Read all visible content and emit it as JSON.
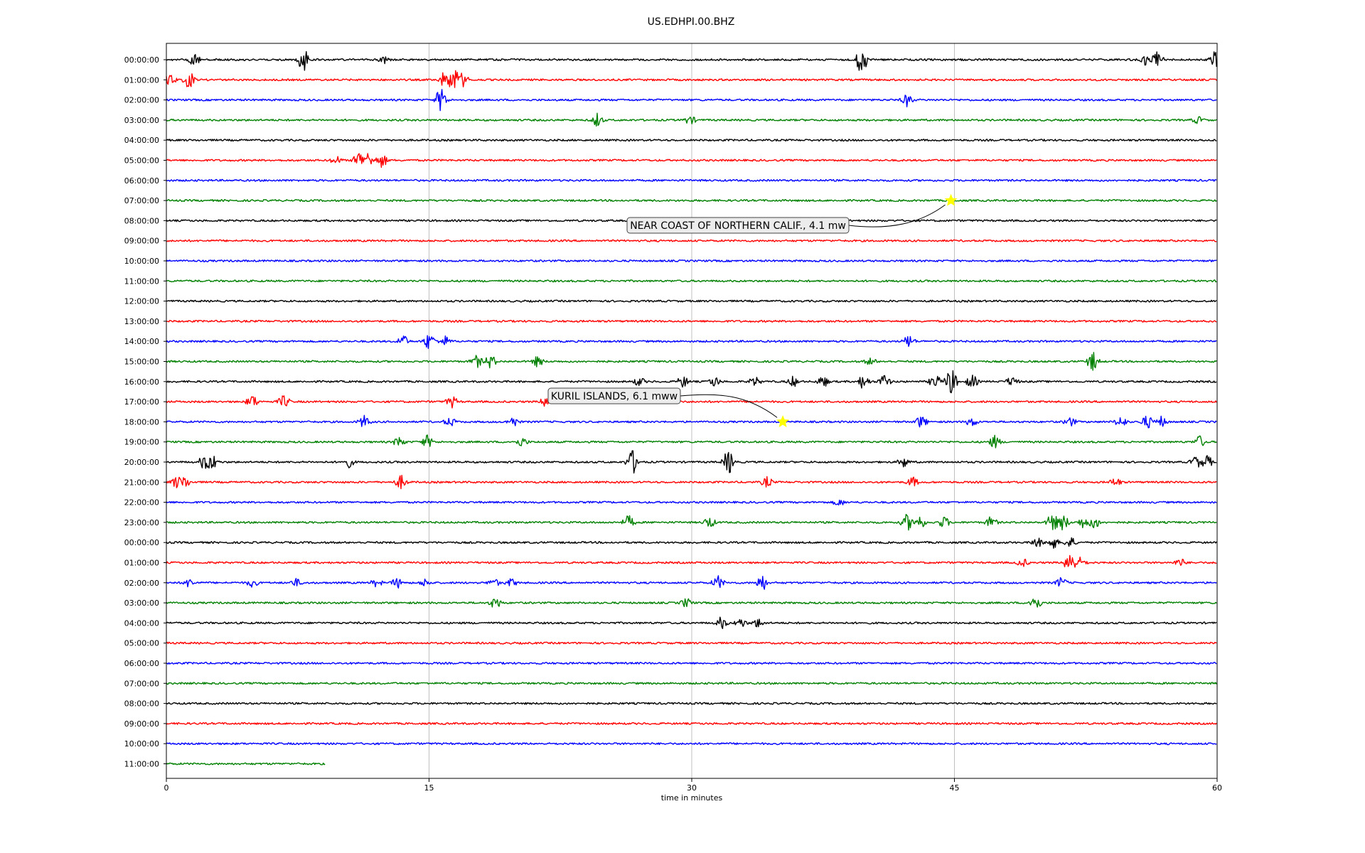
{
  "chart_data": {
    "type": "line",
    "title": "US.EDHPI.00.BHZ",
    "xlabel": "time in minutes",
    "ylabel": "",
    "xlim": [
      0,
      60
    ],
    "xticks": [
      0,
      15,
      30,
      45,
      60
    ],
    "xtick_labels": [
      "0",
      "15",
      "30",
      "45",
      "60"
    ],
    "grid": "vertical lines at x ticks",
    "trace_colors": [
      "#000000",
      "#ff0000",
      "#0000ff",
      "#008000"
    ],
    "rows": [
      {
        "label": "00:00:00",
        "bursts": [
          {
            "t": 1.6,
            "a": 2.2
          },
          {
            "t": 7.8,
            "a": 5
          },
          {
            "t": 12.4,
            "a": 1.6
          },
          {
            "t": 39.7,
            "a": 5
          },
          {
            "t": 56.0,
            "a": 2.2
          },
          {
            "t": 56.6,
            "a": 3
          },
          {
            "t": 59.9,
            "a": 3
          }
        ]
      },
      {
        "label": "01:00:00",
        "bursts": [
          {
            "t": 0.2,
            "a": 2.5
          },
          {
            "t": 1.3,
            "a": 3
          },
          {
            "t": 15.9,
            "a": 3
          },
          {
            "t": 16.4,
            "a": 5
          },
          {
            "t": 16.9,
            "a": 2.5
          }
        ]
      },
      {
        "label": "02:00:00",
        "bursts": [
          {
            "t": 15.7,
            "a": 4.5
          },
          {
            "t": 42.3,
            "a": 2.2
          }
        ]
      },
      {
        "label": "03:00:00",
        "bursts": [
          {
            "t": 24.6,
            "a": 2.4
          },
          {
            "t": 29.9,
            "a": 1.4
          },
          {
            "t": 58.9,
            "a": 1.2
          }
        ]
      },
      {
        "label": "04:00:00",
        "bursts": []
      },
      {
        "label": "05:00:00",
        "bursts": [
          {
            "t": 9.7,
            "a": 1.4
          },
          {
            "t": 11.0,
            "a": 3.2
          },
          {
            "t": 11.5,
            "a": 2.6
          },
          {
            "t": 12.3,
            "a": 2.4
          }
        ]
      },
      {
        "label": "06:00:00",
        "bursts": []
      },
      {
        "label": "07:00:00",
        "bursts": []
      },
      {
        "label": "08:00:00",
        "bursts": []
      },
      {
        "label": "09:00:00",
        "bursts": []
      },
      {
        "label": "10:00:00",
        "bursts": []
      },
      {
        "label": "11:00:00",
        "bursts": []
      },
      {
        "label": "12:00:00",
        "bursts": []
      },
      {
        "label": "13:00:00",
        "bursts": []
      },
      {
        "label": "14:00:00",
        "bursts": [
          {
            "t": 13.5,
            "a": 2.2
          },
          {
            "t": 15.0,
            "a": 3
          },
          {
            "t": 15.9,
            "a": 1.8
          },
          {
            "t": 42.4,
            "a": 2.2
          }
        ]
      },
      {
        "label": "15:00:00",
        "bursts": [
          {
            "t": 17.7,
            "a": 2.2
          },
          {
            "t": 18.5,
            "a": 2.4
          },
          {
            "t": 21.2,
            "a": 1.8
          },
          {
            "t": 40.2,
            "a": 1.2
          },
          {
            "t": 52.9,
            "a": 3.4
          }
        ]
      },
      {
        "label": "16:00:00",
        "bursts": [
          {
            "t": 27.0,
            "a": 1.5
          },
          {
            "t": 29.5,
            "a": 2
          },
          {
            "t": 31.3,
            "a": 1.8
          },
          {
            "t": 33.6,
            "a": 1.6
          },
          {
            "t": 35.8,
            "a": 1.8
          },
          {
            "t": 37.5,
            "a": 2
          },
          {
            "t": 39.8,
            "a": 2.6
          },
          {
            "t": 41.0,
            "a": 2.4
          },
          {
            "t": 43.9,
            "a": 2.4
          },
          {
            "t": 44.8,
            "a": 5
          },
          {
            "t": 46.0,
            "a": 2.4
          },
          {
            "t": 48.3,
            "a": 1.8
          }
        ]
      },
      {
        "label": "17:00:00",
        "bursts": [
          {
            "t": 4.9,
            "a": 2.4
          },
          {
            "t": 6.7,
            "a": 2.2
          },
          {
            "t": 16.3,
            "a": 2
          },
          {
            "t": 21.7,
            "a": 2.2
          }
        ]
      },
      {
        "label": "18:00:00",
        "bursts": [
          {
            "t": 11.3,
            "a": 2.2
          },
          {
            "t": 16.2,
            "a": 1.6
          },
          {
            "t": 19.8,
            "a": 1.8
          },
          {
            "t": 43.1,
            "a": 2.2
          },
          {
            "t": 46.0,
            "a": 1.6
          },
          {
            "t": 51.6,
            "a": 1.6
          },
          {
            "t": 54.5,
            "a": 2
          },
          {
            "t": 56.0,
            "a": 2.4
          },
          {
            "t": 56.8,
            "a": 1.8
          }
        ]
      },
      {
        "label": "19:00:00",
        "bursts": [
          {
            "t": 13.3,
            "a": 1.8
          },
          {
            "t": 14.9,
            "a": 2.2
          },
          {
            "t": 20.3,
            "a": 1.6
          },
          {
            "t": 47.3,
            "a": 2.2
          },
          {
            "t": 59.0,
            "a": 2.2
          }
        ]
      },
      {
        "label": "20:00:00",
        "bursts": [
          {
            "t": 2.2,
            "a": 3
          },
          {
            "t": 2.6,
            "a": 3
          },
          {
            "t": 10.4,
            "a": 1.8
          },
          {
            "t": 26.6,
            "a": 4.5
          },
          {
            "t": 32.1,
            "a": 4.5
          },
          {
            "t": 42.1,
            "a": 1.8
          },
          {
            "t": 58.8,
            "a": 2.2
          },
          {
            "t": 59.4,
            "a": 2.4
          }
        ]
      },
      {
        "label": "21:00:00",
        "bursts": [
          {
            "t": 0.6,
            "a": 2.2
          },
          {
            "t": 1.0,
            "a": 2.4
          },
          {
            "t": 13.4,
            "a": 2.4
          },
          {
            "t": 34.3,
            "a": 1.8
          },
          {
            "t": 42.6,
            "a": 1.8
          },
          {
            "t": 54.2,
            "a": 1.5
          }
        ]
      },
      {
        "label": "22:00:00",
        "bursts": [
          {
            "t": 38.4,
            "a": 1.2
          }
        ]
      },
      {
        "label": "23:00:00",
        "bursts": [
          {
            "t": 26.4,
            "a": 2.4
          },
          {
            "t": 31.0,
            "a": 2
          },
          {
            "t": 42.3,
            "a": 3
          },
          {
            "t": 43.0,
            "a": 2.4
          },
          {
            "t": 44.4,
            "a": 2
          },
          {
            "t": 47.1,
            "a": 2
          },
          {
            "t": 50.6,
            "a": 3.4
          },
          {
            "t": 51.2,
            "a": 2.8
          },
          {
            "t": 52.4,
            "a": 2.2
          },
          {
            "t": 53.0,
            "a": 2.2
          }
        ]
      },
      {
        "label": "00:00:00",
        "bursts": [
          {
            "t": 49.7,
            "a": 1.8
          },
          {
            "t": 50.6,
            "a": 2.4
          },
          {
            "t": 51.6,
            "a": 2
          }
        ]
      },
      {
        "label": "01:00:00",
        "bursts": [
          {
            "t": 48.9,
            "a": 1.4
          },
          {
            "t": 51.6,
            "a": 4.5
          },
          {
            "t": 52.2,
            "a": 1.8
          },
          {
            "t": 57.9,
            "a": 1.4
          }
        ]
      },
      {
        "label": "02:00:00",
        "bursts": [
          {
            "t": 1.3,
            "a": 1.5
          },
          {
            "t": 4.9,
            "a": 1.4
          },
          {
            "t": 7.4,
            "a": 1.3
          },
          {
            "t": 12.0,
            "a": 1.3
          },
          {
            "t": 13.2,
            "a": 1.8
          },
          {
            "t": 14.8,
            "a": 1.3
          },
          {
            "t": 18.7,
            "a": 1.4
          },
          {
            "t": 19.7,
            "a": 1.4
          },
          {
            "t": 31.5,
            "a": 2.4
          },
          {
            "t": 34.0,
            "a": 3
          },
          {
            "t": 51.1,
            "a": 1.8
          }
        ]
      },
      {
        "label": "03:00:00",
        "bursts": [
          {
            "t": 18.8,
            "a": 2.2
          },
          {
            "t": 29.7,
            "a": 1.6
          },
          {
            "t": 49.6,
            "a": 3
          }
        ]
      },
      {
        "label": "04:00:00",
        "bursts": [
          {
            "t": 31.7,
            "a": 2.2
          },
          {
            "t": 32.8,
            "a": 1.6
          },
          {
            "t": 33.8,
            "a": 1.6
          }
        ]
      },
      {
        "label": "05:00:00",
        "bursts": []
      },
      {
        "label": "06:00:00",
        "bursts": []
      },
      {
        "label": "07:00:00",
        "bursts": []
      },
      {
        "label": "08:00:00",
        "bursts": []
      },
      {
        "label": "09:00:00",
        "bursts": []
      },
      {
        "label": "10:00:00",
        "bursts": []
      },
      {
        "label": "11:00:00",
        "bursts": [],
        "end_minute": 9.1
      }
    ],
    "events": [
      {
        "label": "NEAR COAST OF NORTHERN CALIF., 4.1 mw",
        "row": 7,
        "minute": 44.8
      },
      {
        "label": "KURIL ISLANDS, 6.1 mww",
        "row": 18,
        "minute": 35.2
      }
    ],
    "event_marker_color": "#ffff00"
  }
}
